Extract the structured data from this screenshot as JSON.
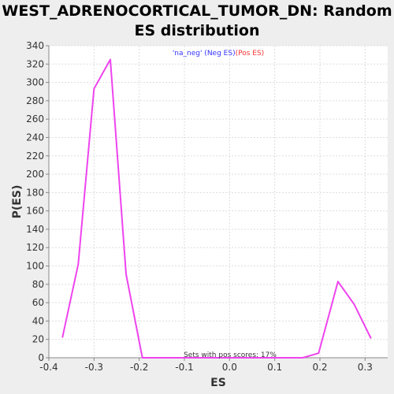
{
  "chart_data": {
    "type": "line",
    "title_line1": "WEST_ADRENOCORTICAL_TUMOR_DN: Random",
    "title_line2": "ES distribution",
    "xlabel": "ES",
    "ylabel": "P(ES)",
    "xlim": [
      -0.4,
      0.35
    ],
    "ylim": [
      0,
      340
    ],
    "x_ticks": [
      -0.4,
      -0.3,
      -0.2,
      -0.1,
      0.0,
      0.1,
      0.2,
      0.3
    ],
    "x_tick_labels": [
      "-0.4",
      "-0.3",
      "-0.2",
      "-0.1",
      "0.0",
      "0.1",
      "0.2",
      "0.3"
    ],
    "y_ticks": [
      0,
      20,
      40,
      60,
      80,
      100,
      120,
      140,
      160,
      180,
      200,
      220,
      240,
      260,
      280,
      300,
      320,
      340
    ],
    "y_tick_labels": [
      "0",
      "20",
      "40",
      "60",
      "80",
      "100",
      "120",
      "140",
      "160",
      "180",
      "200",
      "220",
      "240",
      "260",
      "280",
      "300",
      "320",
      "340"
    ],
    "grid": true,
    "legend": {
      "placement": "top-center",
      "entries": [
        {
          "text": "'na_neg' (Neg ES)",
          "color": "#3333ff"
        },
        {
          "text": " (Pos ES)",
          "color": "#ff3333"
        }
      ]
    },
    "annotation": "Sets with pos scores: 17%",
    "series": [
      {
        "color": "#ee44ee",
        "x": [
          -0.37,
          -0.335,
          -0.3,
          -0.264,
          -0.229,
          -0.193,
          -0.158,
          -0.122,
          -0.087,
          -0.051,
          -0.016,
          0.02,
          0.055,
          0.091,
          0.126,
          0.162,
          0.197,
          0.24,
          0.276,
          0.313
        ],
        "y": [
          22,
          102,
          293,
          325,
          91,
          0,
          0,
          0,
          0,
          0,
          0,
          0,
          0,
          0,
          0,
          0,
          5,
          83,
          58,
          21
        ]
      }
    ]
  }
}
